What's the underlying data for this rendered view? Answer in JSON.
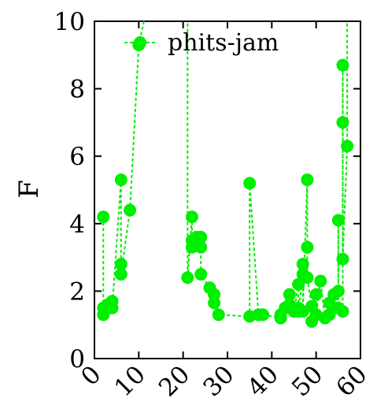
{
  "chart_data": {
    "type": "line",
    "title": "",
    "xlabel": "",
    "ylabel": "F",
    "xlim": [
      0,
      60
    ],
    "ylim": [
      0,
      10
    ],
    "x_ticks": [
      0,
      10,
      20,
      30,
      40,
      50,
      60
    ],
    "y_ticks": [
      0,
      2,
      4,
      6,
      8,
      10
    ],
    "grid": false,
    "legend_position": "top",
    "series_color": "#00ee00",
    "series": [
      {
        "name": "phits-jam",
        "points": [
          [
            2,
            4.2
          ],
          [
            2,
            1.5
          ],
          [
            2,
            1.3
          ],
          [
            3,
            1.5
          ],
          [
            3,
            1.6
          ],
          [
            4,
            1.7
          ],
          [
            4,
            1.5
          ],
          [
            6,
            5.3
          ],
          [
            6,
            2.8
          ],
          [
            6,
            2.5
          ],
          [
            8,
            4.4
          ],
          [
            10,
            9.3
          ],
          [
            12,
            10.5
          ],
          [
            21,
            12.0
          ],
          [
            21,
            2.4
          ],
          [
            22,
            4.2
          ],
          [
            22,
            3.3
          ],
          [
            22,
            3.5
          ],
          [
            23,
            3.6
          ],
          [
            24,
            3.3
          ],
          [
            24,
            3.6
          ],
          [
            24,
            2.5
          ],
          [
            26,
            2.1
          ],
          [
            27,
            1.65
          ],
          [
            27,
            1.9
          ],
          [
            28,
            1.3
          ],
          [
            35,
            1.25
          ],
          [
            35,
            5.2
          ],
          [
            37,
            1.3
          ],
          [
            37,
            1.3
          ],
          [
            38,
            1.3
          ],
          [
            42,
            1.2
          ],
          [
            42,
            1.3
          ],
          [
            43,
            1.5
          ],
          [
            44,
            1.9
          ],
          [
            44,
            1.6
          ],
          [
            45,
            1.4
          ],
          [
            46,
            2.2
          ],
          [
            46,
            1.5
          ],
          [
            46,
            1.4
          ],
          [
            47,
            2.5
          ],
          [
            47,
            2.8
          ],
          [
            47,
            1.4
          ],
          [
            48,
            5.3
          ],
          [
            48,
            3.3
          ],
          [
            48,
            2.4
          ],
          [
            49,
            1.55
          ],
          [
            49,
            1.1
          ],
          [
            50,
            1.9
          ],
          [
            50,
            1.3
          ],
          [
            51,
            2.3
          ],
          [
            52,
            1.2
          ],
          [
            53,
            1.3
          ],
          [
            53,
            1.65
          ],
          [
            54,
            1.9
          ],
          [
            55,
            2.0
          ],
          [
            55,
            4.1
          ],
          [
            55,
            1.5
          ],
          [
            56,
            1.4
          ],
          [
            56,
            8.7
          ],
          [
            56,
            7.0
          ],
          [
            56,
            2.95
          ],
          [
            57,
            6.3
          ],
          [
            57,
            12.0
          ]
        ]
      }
    ]
  }
}
